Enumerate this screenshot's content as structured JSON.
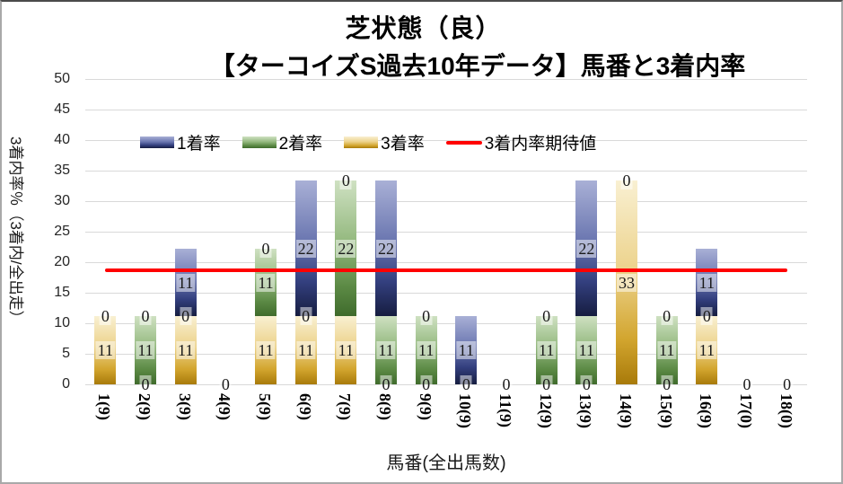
{
  "title": {
    "line1": "芝状態（良）",
    "line2": "【ターコイズS過去10年データ】馬番と3着内率"
  },
  "legend": {
    "items": [
      {
        "label": "1着率",
        "color": "#4a5796",
        "type": "box"
      },
      {
        "label": "2着率",
        "color": "#6f9c59",
        "type": "box"
      },
      {
        "label": "3着率",
        "color": "#d9b34a",
        "type": "box"
      },
      {
        "label": "3着内率期待値",
        "color": "#ff0000",
        "type": "line"
      }
    ]
  },
  "axes": {
    "y": {
      "title": "3着内率％（3着内/全出走）",
      "min": 0,
      "max": 50,
      "step": 5,
      "ticks": [
        "0",
        "5",
        "10",
        "15",
        "20",
        "25",
        "30",
        "35",
        "40",
        "45",
        "50"
      ]
    },
    "x": {
      "title": "馬番(全出馬数)"
    }
  },
  "colors": {
    "grid": "#d9d9d9",
    "expected_line": "#ff0000",
    "rank1_top": "#a9b0d6",
    "rank1_bottom": "#161d40",
    "rank2_top": "#cfe1c2",
    "rank2_bottom": "#3f6b2c",
    "rank3_top": "#f9f0d2",
    "rank3_bottom": "#a87a0a"
  },
  "chart_data": {
    "type": "bar",
    "subtype": "stacked-bar-with-expected-line",
    "title": "芝状態（良）【ターコイズS過去10年データ】馬番と3着内率",
    "xlabel": "馬番(全出馬数)",
    "ylabel": "3着内率％（3着内/全出走）",
    "ylim": [
      0,
      50
    ],
    "y_step": 5,
    "grid": true,
    "legend_position": "inside-top",
    "categories": [
      "1(9)",
      "2(9)",
      "3(9)",
      "4(9)",
      "5(9)",
      "6(9)",
      "7(9)",
      "8(9)",
      "9(9)",
      "10(9)",
      "11(9)",
      "12(9)",
      "13(9)",
      "14(9)",
      "15(9)",
      "16(9)",
      "17(0)",
      "18(0)"
    ],
    "stack_order_bottom_to_top": [
      "3着率",
      "2着率",
      "1着率"
    ],
    "series": [
      {
        "name": "1着率",
        "style": "grad-blue",
        "values": [
          0,
          0,
          11.11,
          0,
          0,
          22.22,
          0,
          22.22,
          0,
          11.11,
          0,
          0,
          22.22,
          0,
          0,
          11.11,
          0,
          0
        ],
        "labels": [
          "0",
          "0",
          "11",
          "0",
          "0",
          "22",
          "0",
          "22",
          "0",
          "11",
          "0",
          "0",
          "22",
          "0",
          "0",
          "11",
          "0",
          "0"
        ]
      },
      {
        "name": "2着率",
        "style": "grad-green",
        "values": [
          0,
          11.11,
          0,
          0,
          11.11,
          0,
          22.22,
          11.11,
          11.11,
          0,
          0,
          11.11,
          11.11,
          0,
          11.11,
          0,
          0,
          0
        ],
        "labels": [
          "0",
          "11",
          "0",
          "0",
          "11",
          "0",
          "22",
          "11",
          "11",
          "0",
          "0",
          "11",
          "11",
          "0",
          "11",
          "0",
          "0",
          "0"
        ]
      },
      {
        "name": "3着率",
        "style": "grad-gold",
        "values": [
          11.11,
          0,
          11.11,
          0,
          11.11,
          11.11,
          11.11,
          0,
          0,
          0,
          0,
          0,
          0,
          33.33,
          0,
          11.11,
          0,
          0
        ],
        "labels": [
          "11",
          "0",
          "11",
          "0",
          "11",
          "11",
          "11",
          "0",
          "0",
          "0",
          "0",
          "0",
          "0",
          "33",
          "0",
          "11",
          "0",
          "0"
        ]
      }
    ],
    "expected_line": {
      "name": "3着内率期待値",
      "value": 18.75,
      "color": "#ff0000"
    }
  }
}
